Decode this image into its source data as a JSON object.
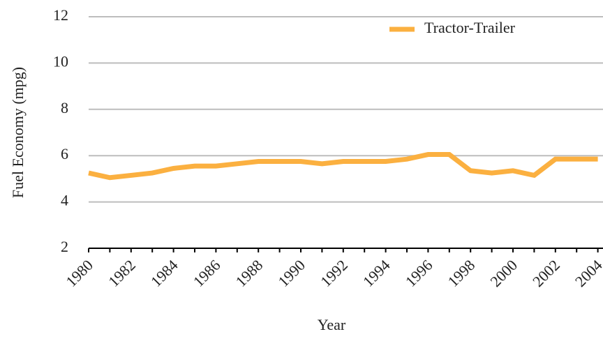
{
  "chart_data": {
    "type": "line",
    "x_label": "Year",
    "y_label": "Fuel Economy (mpg)",
    "categories": [
      "1980",
      null,
      "1982",
      null,
      "1984",
      null,
      "1986",
      null,
      "1988",
      null,
      "1990",
      null,
      "1992",
      null,
      "1994",
      null,
      "1996",
      null,
      "1998",
      null,
      "2000",
      null,
      "2002",
      null,
      "2004"
    ],
    "series": [
      {
        "name": "Tractor-Trailer",
        "color": "#fbb040",
        "values": [
          5.25,
          5.05,
          5.15,
          5.25,
          5.45,
          5.55,
          5.55,
          5.65,
          5.75,
          5.75,
          5.75,
          5.65,
          5.75,
          5.75,
          5.75,
          5.85,
          6.05,
          6.05,
          5.35,
          5.25,
          5.35,
          5.15,
          5.85,
          5.85,
          5.85
        ]
      }
    ],
    "ylim": [
      2,
      12
    ],
    "yticks": [
      2,
      4,
      6,
      8,
      10,
      12
    ],
    "grid": true,
    "legend": "top-right"
  }
}
